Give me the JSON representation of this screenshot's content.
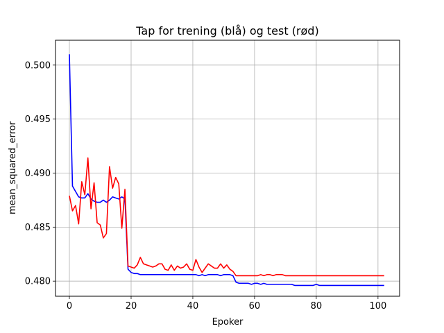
{
  "chart_data": {
    "type": "line",
    "title": "Tap for trening (blå) og test (rød)",
    "xlabel": "Epoker",
    "ylabel": "mean_squared_error",
    "xlim": [
      -4.5,
      107
    ],
    "ylim": [
      0.4786,
      0.5023
    ],
    "xticks": [
      0,
      20,
      40,
      60,
      80,
      100
    ],
    "xtick_labels": [
      "0",
      "20",
      "40",
      "60",
      "80",
      "100"
    ],
    "yticks": [
      0.48,
      0.485,
      0.49,
      0.495,
      0.5
    ],
    "ytick_labels": [
      "0.480",
      "0.485",
      "0.490",
      "0.495",
      "0.500"
    ],
    "grid": true,
    "series": [
      {
        "color": "#0000ff",
        "x": [
          0,
          1,
          2,
          3,
          4,
          5,
          6,
          7,
          8,
          9,
          10,
          11,
          12,
          13,
          14,
          15,
          16,
          17,
          18,
          19,
          20,
          21,
          22,
          23,
          24,
          25,
          26,
          27,
          28,
          29,
          30,
          31,
          32,
          33,
          34,
          35,
          36,
          37,
          38,
          39,
          40,
          41,
          42,
          43,
          44,
          45,
          46,
          47,
          48,
          49,
          50,
          51,
          52,
          53,
          54,
          55,
          56,
          57,
          58,
          59,
          60,
          61,
          62,
          63,
          64,
          65,
          66,
          67,
          68,
          69,
          70,
          71,
          72,
          73,
          74,
          75,
          76,
          77,
          78,
          79,
          80,
          81,
          82,
          83,
          84,
          85,
          86,
          87,
          88,
          89,
          90,
          91,
          92,
          93,
          94,
          95,
          96,
          97,
          98,
          99,
          100,
          101,
          102
        ],
        "values": [
          0.501,
          0.4888,
          0.4883,
          0.4878,
          0.4877,
          0.4877,
          0.4881,
          0.4876,
          0.4874,
          0.4873,
          0.4873,
          0.4875,
          0.4873,
          0.4875,
          0.4878,
          0.4877,
          0.4876,
          0.4878,
          0.4876,
          0.4811,
          0.4808,
          0.4807,
          0.4807,
          0.4806,
          0.4806,
          0.4806,
          0.4806,
          0.4806,
          0.4806,
          0.4806,
          0.4806,
          0.4806,
          0.4806,
          0.4806,
          0.4806,
          0.4806,
          0.4806,
          0.4806,
          0.4806,
          0.4806,
          0.4806,
          0.4806,
          0.4805,
          0.4806,
          0.4805,
          0.4806,
          0.4806,
          0.4806,
          0.4806,
          0.4805,
          0.4806,
          0.4806,
          0.4806,
          0.4805,
          0.4799,
          0.4798,
          0.4798,
          0.4798,
          0.4798,
          0.4797,
          0.4798,
          0.4798,
          0.4797,
          0.4798,
          0.4797,
          0.4797,
          0.4797,
          0.4797,
          0.4797,
          0.4797,
          0.4797,
          0.4797,
          0.4797,
          0.4796,
          0.4796,
          0.4796,
          0.4796,
          0.4796,
          0.4796,
          0.4796,
          0.4797,
          0.4796,
          0.4796,
          0.4796,
          0.4796,
          0.4796,
          0.4796,
          0.4796,
          0.4796,
          0.4796,
          0.4796,
          0.4796,
          0.4796,
          0.4796,
          0.4796,
          0.4796,
          0.4796,
          0.4796,
          0.4796,
          0.4796,
          0.4796,
          0.4796,
          0.4796
        ]
      },
      {
        "color": "#ff0000",
        "x": [
          0,
          1,
          2,
          3,
          4,
          5,
          6,
          7,
          8,
          9,
          10,
          11,
          12,
          13,
          14,
          15,
          16,
          17,
          18,
          19,
          20,
          21,
          22,
          23,
          24,
          25,
          26,
          27,
          28,
          29,
          30,
          31,
          32,
          33,
          34,
          35,
          36,
          37,
          38,
          39,
          40,
          41,
          42,
          43,
          44,
          45,
          46,
          47,
          48,
          49,
          50,
          51,
          52,
          53,
          54,
          55,
          56,
          57,
          58,
          59,
          60,
          61,
          62,
          63,
          64,
          65,
          66,
          67,
          68,
          69,
          70,
          71,
          72,
          73,
          74,
          75,
          76,
          77,
          78,
          79,
          80,
          81,
          82,
          83,
          84,
          85,
          86,
          87,
          88,
          89,
          90,
          91,
          92,
          93,
          94,
          95,
          96,
          97,
          98,
          99,
          100,
          101,
          102
        ],
        "values": [
          0.4879,
          0.4865,
          0.487,
          0.4853,
          0.4892,
          0.488,
          0.4914,
          0.4867,
          0.4891,
          0.4854,
          0.4852,
          0.484,
          0.4844,
          0.4906,
          0.4886,
          0.4896,
          0.489,
          0.4849,
          0.4885,
          0.4814,
          0.4813,
          0.4812,
          0.4815,
          0.4822,
          0.4816,
          0.4815,
          0.4814,
          0.4813,
          0.4814,
          0.4816,
          0.4816,
          0.4811,
          0.481,
          0.4815,
          0.481,
          0.4814,
          0.4812,
          0.4813,
          0.4816,
          0.4811,
          0.481,
          0.482,
          0.4813,
          0.4808,
          0.4812,
          0.4816,
          0.4814,
          0.4812,
          0.4812,
          0.4816,
          0.4812,
          0.4815,
          0.4811,
          0.4809,
          0.4805,
          0.4805,
          0.4805,
          0.4805,
          0.4805,
          0.4805,
          0.4805,
          0.4805,
          0.4806,
          0.4805,
          0.4806,
          0.4806,
          0.4805,
          0.4806,
          0.4806,
          0.4806,
          0.4805,
          0.4805,
          0.4805,
          0.4805,
          0.4805,
          0.4805,
          0.4805,
          0.4805,
          0.4805,
          0.4805,
          0.4805,
          0.4805,
          0.4805,
          0.4805,
          0.4805,
          0.4805,
          0.4805,
          0.4805,
          0.4805,
          0.4805,
          0.4805,
          0.4805,
          0.4805,
          0.4805,
          0.4805,
          0.4805,
          0.4805,
          0.4805,
          0.4805,
          0.4805,
          0.4805,
          0.4805,
          0.4805
        ]
      }
    ]
  }
}
